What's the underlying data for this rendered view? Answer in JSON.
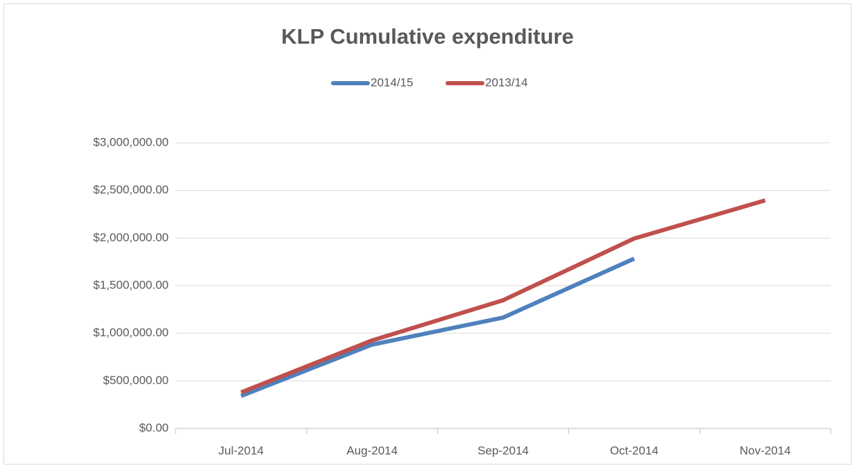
{
  "chart_data": {
    "type": "line",
    "title": "KLP Cumulative expenditure",
    "categories": [
      "Jul-2014",
      "Aug-2014",
      "Sep-2014",
      "Oct-2014",
      "Nov-2014"
    ],
    "series": [
      {
        "name": "2014/15",
        "color": "#4f81bd",
        "values": [
          342000,
          881000,
          1165000,
          1784000,
          null
        ]
      },
      {
        "name": "2013/14",
        "color": "#c0504d",
        "values": [
          379000,
          925000,
          1347000,
          1995000,
          2396000
        ]
      }
    ],
    "ylim": [
      0,
      3000000
    ],
    "yticks": [
      {
        "value": 0,
        "label": "$0.00"
      },
      {
        "value": 500000,
        "label": "$500,000.00"
      },
      {
        "value": 1000000,
        "label": "$1,000,000.00"
      },
      {
        "value": 1500000,
        "label": "$1,500,000.00"
      },
      {
        "value": 2000000,
        "label": "$2,000,000.00"
      },
      {
        "value": 2500000,
        "label": "$2,500,000.00"
      },
      {
        "value": 3000000,
        "label": "$3,000,000.00"
      }
    ],
    "grid": true,
    "legend": "top"
  }
}
